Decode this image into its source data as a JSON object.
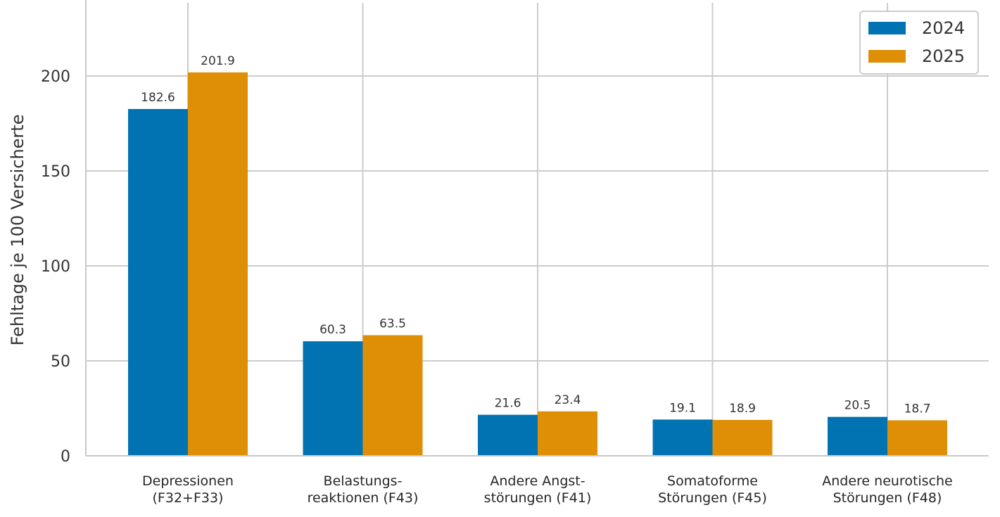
{
  "chart_data": {
    "type": "bar",
    "categories": [
      [
        "Depressionen",
        "(F32+F33)"
      ],
      [
        "Belastungs-",
        "reaktionen (F43)"
      ],
      [
        "Andere Angst-",
        "störungen (F41)"
      ],
      [
        "Somatoforme",
        "Störungen (F45)"
      ],
      [
        "Andere neurotische",
        "Störungen (F48)"
      ]
    ],
    "series": [
      {
        "name": "2024",
        "color": "#0173b2",
        "values": [
          182.6,
          60.3,
          21.6,
          19.1,
          20.5
        ]
      },
      {
        "name": "2025",
        "color": "#de8f05",
        "values": [
          201.9,
          63.5,
          23.4,
          18.9,
          18.7
        ]
      }
    ],
    "value_labels": [
      [
        "182.6",
        "60.3",
        "21.6",
        "19.1",
        "20.5"
      ],
      [
        "201.9",
        "63.5",
        "23.4",
        "18.9",
        "18.7"
      ]
    ],
    "ylabel": "Fehltage je 100 Versicherte",
    "xlabel": "",
    "ylim": [
      0,
      240
    ],
    "yticks": [
      0,
      50,
      100,
      150,
      200
    ],
    "ytick_labels": [
      "0",
      "50",
      "100",
      "150",
      "200"
    ],
    "grid": true,
    "legend_position": "top-right"
  }
}
